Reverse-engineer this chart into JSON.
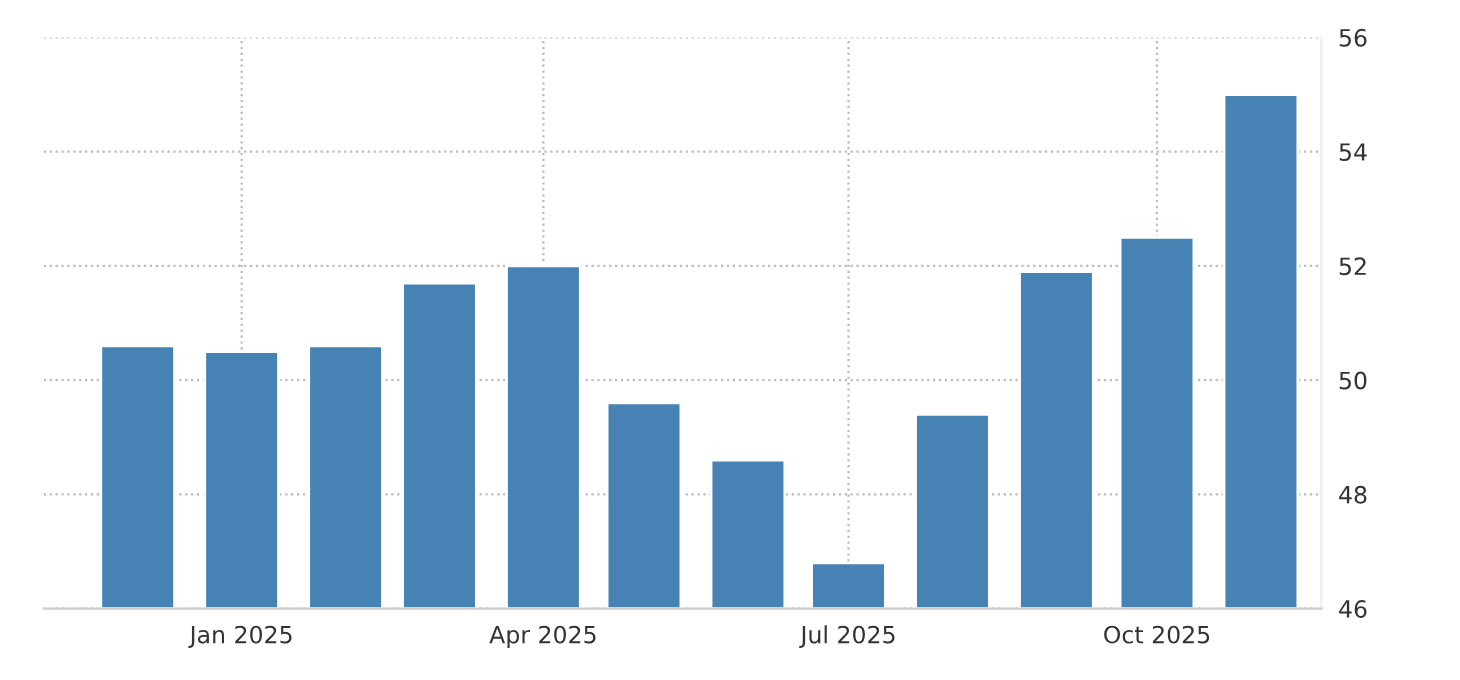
{
  "chart_data": {
    "type": "bar",
    "x": [
      "2024-12",
      "2025-01",
      "2025-02",
      "2025-03",
      "2025-04",
      "2025-05",
      "2025-06",
      "2025-07",
      "2025-08",
      "2025-09",
      "2025-10",
      "2025-11"
    ],
    "values": [
      50.6,
      50.5,
      50.6,
      51.7,
      52.0,
      49.6,
      48.6,
      46.8,
      49.4,
      51.9,
      52.5,
      55.0
    ],
    "color": "#4682b4",
    "xlim": [
      "2024-11-03",
      "2025-11-19"
    ],
    "xticks": [
      {
        "value": "2025-01",
        "label": "Jan 2025"
      },
      {
        "value": "2025-04",
        "label": "Apr 2025"
      },
      {
        "value": "2025-07",
        "label": "Jul 2025"
      },
      {
        "value": "2025-10",
        "label": "Oct 2025"
      }
    ],
    "ylim": [
      46,
      56
    ],
    "yticks": [
      46,
      48,
      50,
      52,
      54,
      56
    ],
    "grid": true
  }
}
